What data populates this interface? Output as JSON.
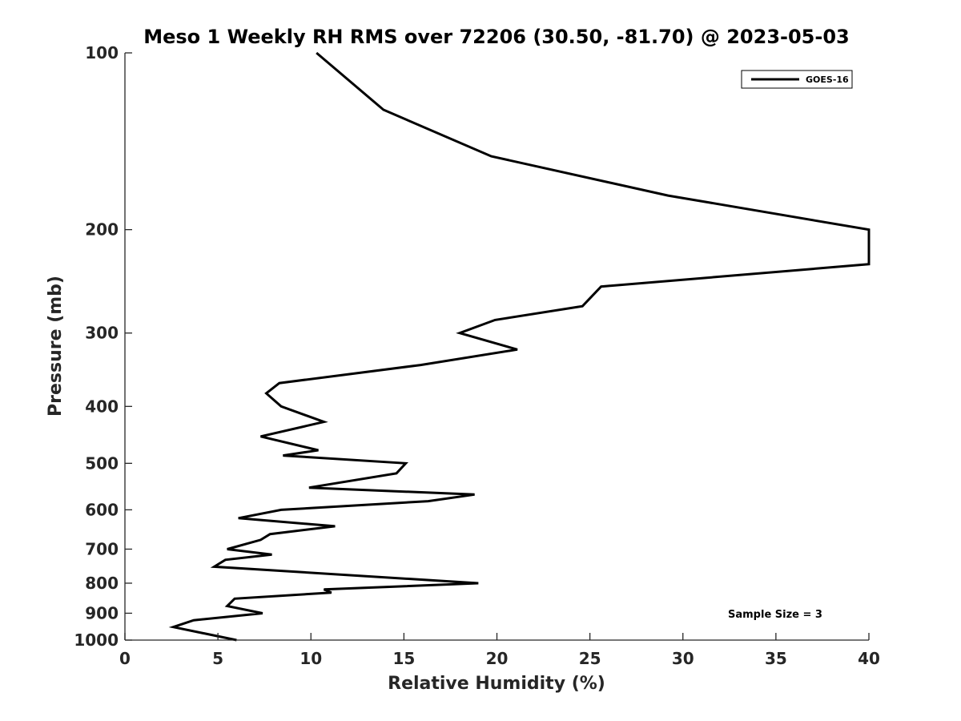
{
  "chart_data": {
    "type": "line",
    "title": "Meso 1 Weekly RH RMS over 72206 (30.50, -81.70) @ 2023-05-03",
    "xlabel": "Relative Humidity (%)",
    "ylabel": "Pressure (mb)",
    "xlim": [
      0,
      40
    ],
    "ylim": [
      100,
      1000
    ],
    "yscale": "log",
    "ydirection": "reversed",
    "xticks": [
      0,
      5,
      10,
      15,
      20,
      25,
      30,
      35,
      40
    ],
    "yticks": [
      100,
      200,
      300,
      400,
      500,
      600,
      700,
      800,
      900,
      1000
    ],
    "grid": false,
    "legend_position": "top-right",
    "annotation": "Sample Size = 3",
    "series": [
      {
        "name": "GOES-16",
        "color": "#000000",
        "points": [
          [
            10.3,
            100
          ],
          [
            13.9,
            125
          ],
          [
            19.7,
            150
          ],
          [
            29.2,
            175
          ],
          [
            40.0,
            200
          ],
          [
            40.0,
            229
          ],
          [
            25.6,
            250
          ],
          [
            24.6,
            270
          ],
          [
            19.9,
            285
          ],
          [
            18.0,
            300
          ],
          [
            21.1,
            320
          ],
          [
            15.9,
            340
          ],
          [
            8.3,
            365
          ],
          [
            7.6,
            380
          ],
          [
            8.4,
            400
          ],
          [
            10.7,
            425
          ],
          [
            7.3,
            450
          ],
          [
            10.4,
            475
          ],
          [
            8.5,
            485
          ],
          [
            15.1,
            500
          ],
          [
            14.6,
            520
          ],
          [
            9.9,
            550
          ],
          [
            18.8,
            565
          ],
          [
            16.3,
            580
          ],
          [
            8.4,
            600
          ],
          [
            6.1,
            620
          ],
          [
            11.3,
            640
          ],
          [
            7.8,
            660
          ],
          [
            7.3,
            675
          ],
          [
            5.5,
            700
          ],
          [
            7.9,
            715
          ],
          [
            5.4,
            730
          ],
          [
            4.8,
            750
          ],
          [
            19.0,
            800
          ],
          [
            10.7,
            820
          ],
          [
            11.1,
            830
          ],
          [
            5.9,
            850
          ],
          [
            5.5,
            875
          ],
          [
            7.4,
            900
          ],
          [
            3.7,
            925
          ],
          [
            2.6,
            950
          ],
          [
            6.0,
            1000
          ]
        ]
      }
    ]
  }
}
